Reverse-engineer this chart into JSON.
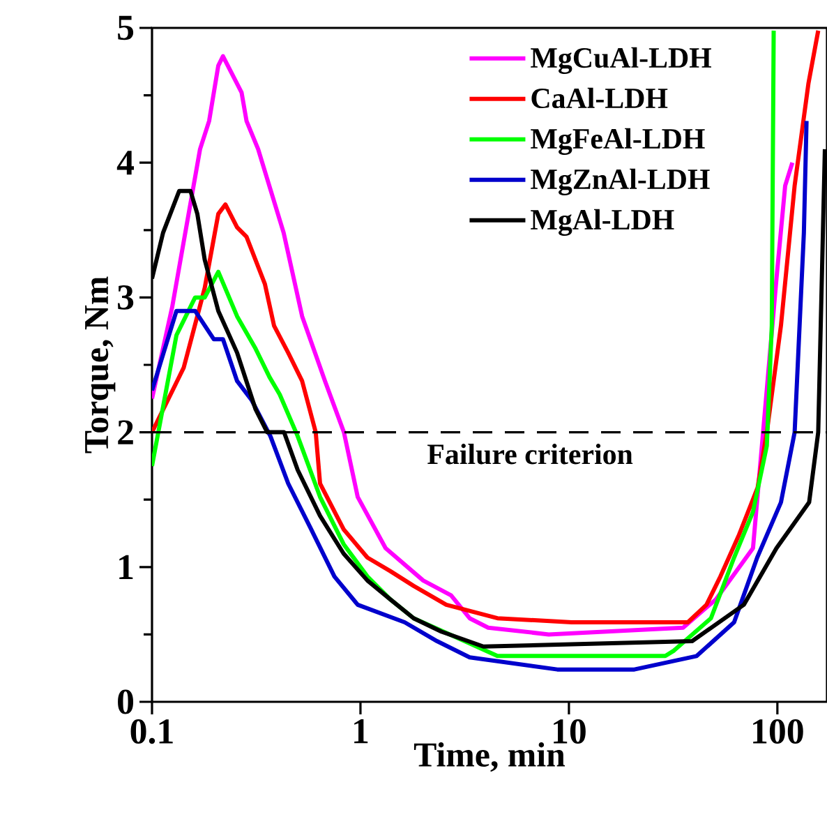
{
  "chart_data": {
    "type": "line",
    "xlabel": "Time, min",
    "ylabel": "Torque, Nm",
    "log": "x",
    "xlim": [
      0.1,
      173
    ],
    "ylim": [
      0,
      5
    ],
    "xticks": [
      0.1,
      1,
      10,
      100
    ],
    "yticks": [
      0,
      1,
      2,
      3,
      4,
      5
    ],
    "legend": "top right",
    "marker": "none",
    "line_style": "solid",
    "ref_lines": [
      {
        "axis": "y",
        "value": 2,
        "label": "Failure criterion",
        "color": "#000000",
        "line_style": "dashed"
      }
    ],
    "series": [
      {
        "name": "MgCuAl-LDH",
        "color": "#ff00ff",
        "x": [
          0.1,
          0.125,
          0.17,
          0.188,
          0.208,
          0.219,
          0.269,
          0.284,
          0.323,
          0.428,
          0.525,
          0.676,
          0.833,
          0.97,
          1.32,
          2.0,
          2.72,
          3.34,
          4.1,
          8.0,
          35.3,
          50.7,
          76.4,
          84.7,
          99,
          109,
          118
        ],
        "values": [
          2.25,
          2.93,
          4.1,
          4.31,
          4.72,
          4.79,
          4.52,
          4.31,
          4.1,
          3.48,
          2.86,
          2.38,
          2.0,
          1.52,
          1.14,
          0.9,
          0.79,
          0.62,
          0.55,
          0.5,
          0.55,
          0.76,
          1.14,
          null,
          3.14,
          3.83,
          4.0
        ]
      },
      {
        "name": "CaAl-LDH",
        "color": "#ff0000",
        "x": [
          0.1,
          0.142,
          0.179,
          0.208,
          0.225,
          0.256,
          0.284,
          0.348,
          0.385,
          0.45,
          0.525,
          0.61,
          0.64,
          0.83,
          1.08,
          1.39,
          1.8,
          2.58,
          4.54,
          10.3,
          37.2,
          45.7,
          53.3,
          65.5,
          80.4,
          89,
          104,
          121,
          141,
          157
        ],
        "values": [
          2.0,
          2.48,
          3.07,
          3.62,
          3.69,
          3.52,
          3.45,
          3.1,
          2.79,
          2.59,
          2.38,
          2.0,
          1.62,
          1.28,
          1.07,
          0.97,
          0.86,
          0.72,
          0.62,
          0.59,
          0.59,
          0.72,
          0.93,
          1.24,
          1.59,
          2.0,
          2.79,
          3.83,
          4.59,
          4.98
        ]
      },
      {
        "name": "MgFeAl-LDH",
        "color": "#00ff00",
        "x": [
          0.1,
          0.131,
          0.161,
          0.179,
          0.208,
          0.256,
          0.314,
          0.366,
          0.41,
          0.5,
          0.64,
          0.83,
          1.08,
          1.39,
          1.8,
          3.16,
          4.54,
          29,
          31.9,
          48,
          62,
          76.4,
          89,
          94,
          96
        ],
        "values": [
          1.75,
          2.72,
          3.0,
          3.0,
          3.19,
          2.86,
          2.62,
          2.41,
          2.28,
          1.97,
          1.52,
          1.17,
          0.93,
          0.76,
          0.62,
          0.45,
          0.34,
          0.34,
          0.38,
          0.62,
          1.07,
          1.41,
          1.9,
          2.79,
          4.98
        ]
      },
      {
        "name": "MgZnAl-LDH",
        "color": "#0000cc",
        "x": [
          0.1,
          0.131,
          0.161,
          0.198,
          0.219,
          0.256,
          0.3,
          0.37,
          0.45,
          0.58,
          0.75,
          0.97,
          1.63,
          2.33,
          3.34,
          8.8,
          20.6,
          41,
          62,
          80,
          104,
          121,
          134,
          138
        ],
        "values": [
          2.31,
          2.9,
          2.9,
          2.69,
          2.69,
          2.38,
          2.24,
          1.97,
          1.62,
          1.28,
          0.93,
          0.72,
          0.59,
          0.45,
          0.33,
          0.24,
          0.24,
          0.34,
          0.59,
          1.07,
          1.48,
          2.0,
          3.48,
          4.31
        ]
      },
      {
        "name": "MgAl-LDH",
        "color": "#000000",
        "x": [
          0.1,
          0.113,
          0.135,
          0.153,
          0.165,
          0.179,
          0.208,
          0.256,
          0.314,
          0.357,
          0.43,
          0.5,
          0.64,
          0.83,
          1.08,
          1.39,
          1.8,
          2.45,
          3.89,
          39,
          69,
          99,
          142,
          157,
          169
        ],
        "values": [
          3.14,
          3.48,
          3.79,
          3.79,
          3.62,
          3.28,
          2.9,
          2.59,
          2.17,
          2.0,
          2.0,
          1.72,
          1.38,
          1.1,
          0.9,
          0.76,
          0.62,
          0.52,
          0.41,
          0.45,
          0.72,
          1.14,
          1.48,
          2.0,
          4.1
        ]
      }
    ]
  }
}
